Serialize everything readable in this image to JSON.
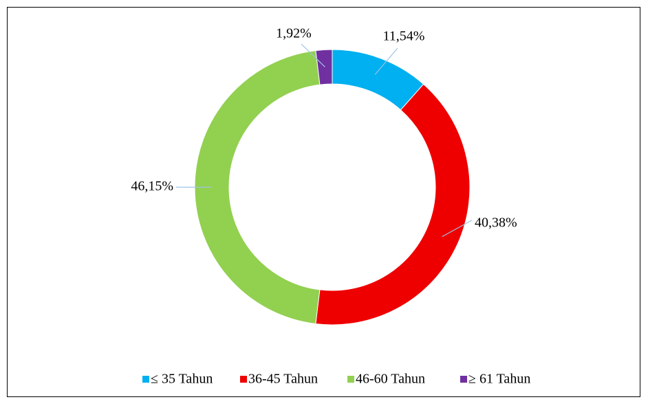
{
  "chart_data": {
    "type": "donut",
    "categories": [
      "≤ 35 Tahun",
      "36-45 Tahun",
      "46-60 Tahun",
      "≥ 61 Tahun"
    ],
    "values": [
      11.54,
      40.38,
      46.15,
      1.92
    ],
    "value_labels": [
      "11,54%",
      "40,38%",
      "46,15%",
      "1,92%"
    ],
    "colors": [
      "#00b0f0",
      "#ee0000",
      "#92d050",
      "#7030a0"
    ],
    "legend": "bottom"
  }
}
